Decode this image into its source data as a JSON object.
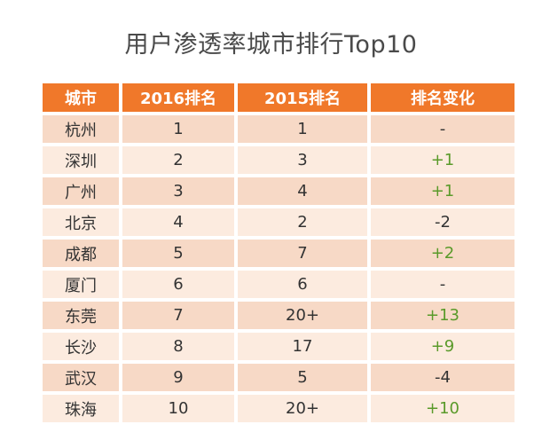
{
  "title": "用户渗透率城市排行Top10",
  "headers": [
    "城市",
    "2016排名",
    "2015排名",
    "排名变化"
  ],
  "rows": [
    {
      "city": "杭州",
      "rank2016": "1",
      "rank2015": "1",
      "change": "-",
      "trend": "same"
    },
    {
      "city": "深圳",
      "rank2016": "2",
      "rank2015": "3",
      "change": "+1",
      "trend": "up"
    },
    {
      "city": "广州",
      "rank2016": "3",
      "rank2015": "4",
      "change": "+1",
      "trend": "up"
    },
    {
      "city": "北京",
      "rank2016": "4",
      "rank2015": "2",
      "change": "-2",
      "trend": "down"
    },
    {
      "city": "成都",
      "rank2016": "5",
      "rank2015": "7",
      "change": "+2",
      "trend": "up"
    },
    {
      "city": "厦门",
      "rank2016": "6",
      "rank2015": "6",
      "change": "-",
      "trend": "same"
    },
    {
      "city": "东莞",
      "rank2016": "7",
      "rank2015": "20+",
      "change": "+13",
      "trend": "up"
    },
    {
      "city": "长沙",
      "rank2016": "8",
      "rank2015": "17",
      "change": "+9",
      "trend": "up"
    },
    {
      "city": "武汉",
      "rank2016": "9",
      "rank2015": "5",
      "change": "-4",
      "trend": "down"
    },
    {
      "city": "珠海",
      "rank2016": "10",
      "rank2015": "20+",
      "change": "+10",
      "trend": "up"
    }
  ],
  "colors": {
    "header_bg": "#f0782a",
    "row_odd": "#f7d9c6",
    "row_even": "#fcebdf",
    "positive_change": "#5a9a2a"
  }
}
